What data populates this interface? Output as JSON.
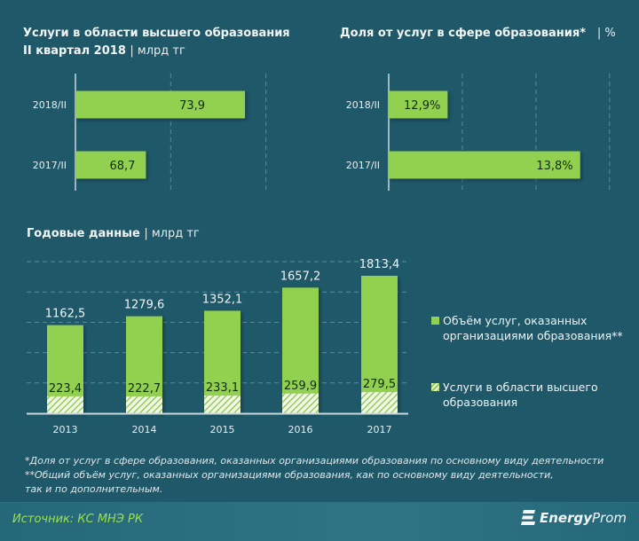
{
  "colors": {
    "background": "#1f5869",
    "bar": "#92d050",
    "grid": "#5a8b99",
    "axis": "#c9d8dd",
    "source_text": "#9ee04f"
  },
  "chart_data": [
    {
      "id": "higher-ed-quarter",
      "type": "bar",
      "orientation": "horizontal",
      "title": "Услуги в области высшего образования",
      "subtitle": "II квартал  2018",
      "unit": "млрд тг",
      "categories": [
        "2018/II",
        "2017/II"
      ],
      "values": [
        73.9,
        68.7
      ],
      "labels": [
        "73,9",
        "68,7"
      ],
      "xlim": [
        65,
        80
      ],
      "grid": [
        70,
        75
      ]
    },
    {
      "id": "share-quarter",
      "type": "bar",
      "orientation": "horizontal",
      "title": "Доля от услуг в сфере образования*",
      "unit": "%",
      "categories": [
        "2018/II",
        "2017/II"
      ],
      "values": [
        12.9,
        13.8
      ],
      "labels": [
        "12,9%",
        "13,8%"
      ],
      "xlim": [
        12.5,
        14.2
      ],
      "grid": [
        13.0,
        13.5,
        14.0
      ]
    },
    {
      "id": "annual",
      "type": "bar",
      "orientation": "vertical",
      "title": "Годовые данные",
      "unit": "млрд тг",
      "categories": [
        "2013",
        "2014",
        "2015",
        "2016",
        "2017"
      ],
      "series": [
        {
          "name": "Объём услуг, оказанных организациями образования**",
          "values": [
            1162.5,
            1279.6,
            1352.1,
            1657.2,
            1813.4
          ],
          "labels": [
            "1162,5",
            "1279,6",
            "1352,1",
            "1657,2",
            "1813,4"
          ]
        },
        {
          "name": "Услуги в области высшего образования",
          "values": [
            223.4,
            222.7,
            233.1,
            259.9,
            279.5
          ],
          "labels": [
            "223,4",
            "222,7",
            "233,1",
            "259,9",
            "279,5"
          ]
        }
      ],
      "ylim": [
        0,
        2000
      ],
      "grid": [
        400,
        800,
        1200,
        1600,
        2000
      ],
      "legend_position": "right"
    }
  ],
  "legend": {
    "items": [
      {
        "line1": "Объём услуг, оказанных",
        "line2": "организациями образования**"
      },
      {
        "line1": "Услуги  в области высшего",
        "line2": "образования"
      }
    ]
  },
  "footnotes": {
    "note1": "*Доля от услуг в сфере образования, оказанных организациями образования по основному  виду деятельности",
    "note2": "**Общий объём услуг, оказанных организациями образования, как по основному виду деятельности,",
    "note3": "так и по дополнительным."
  },
  "footer": {
    "source": "Источник: КС МНЭ РК",
    "logo_energy": "Energy",
    "logo_prom": "Prom"
  }
}
